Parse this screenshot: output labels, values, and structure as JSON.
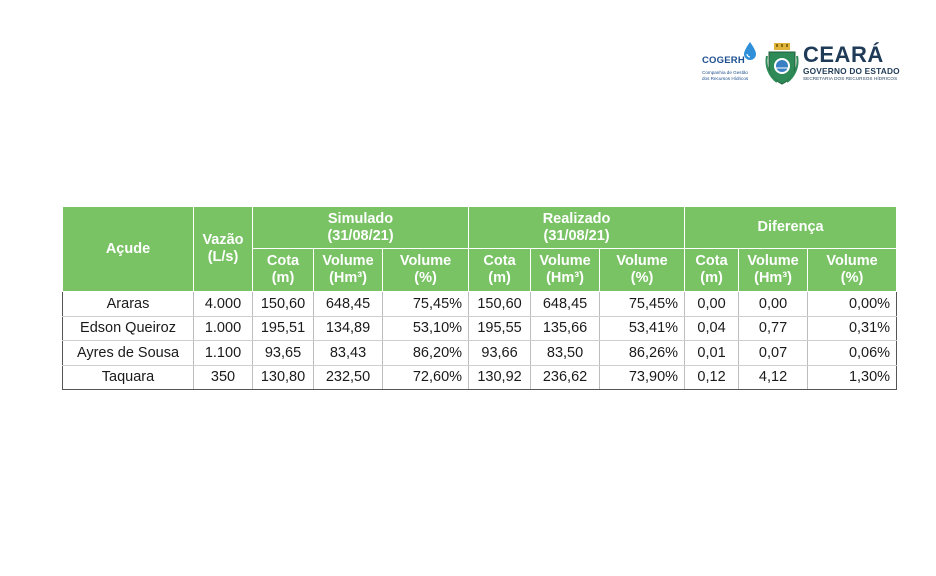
{
  "logos": {
    "cogerh_name": "COGERH",
    "cogerh_sub1": "Companhia de Gestão",
    "cogerh_sub2": "dos Recursos Hídricos",
    "state_name": "CEARÁ",
    "state_gov": "GOVERNO DO ESTADO",
    "state_secretariat": "SECRETARIA DOS RECURSOS HÍDRICOS"
  },
  "table": {
    "headers": {
      "acude": "Açude",
      "vazao_line1": "Vazão",
      "vazao_line2": "(L/s)",
      "simulado_line1": "Simulado",
      "simulado_line2": "(31/08/21)",
      "realizado_line1": "Realizado",
      "realizado_line2": "(31/08/21)",
      "diferenca": "Diferença",
      "cota_line1": "Cota",
      "cota_line2": "(m)",
      "vol_hm_line1": "Volume",
      "vol_hm_line2": "(Hm³)",
      "vol_pct_line1": "Volume",
      "vol_pct_line2": "(%)"
    },
    "rows": [
      {
        "acude": "Araras",
        "vazao": "4.000",
        "sim_cota": "150,60",
        "sim_vol": "648,45",
        "sim_pct": "75,45%",
        "real_cota": "150,60",
        "real_vol": "648,45",
        "real_pct": "75,45%",
        "dif_cota": "0,00",
        "dif_vol": "0,00",
        "dif_pct": "0,00%"
      },
      {
        "acude": "Edson Queiroz",
        "vazao": "1.000",
        "sim_cota": "195,51",
        "sim_vol": "134,89",
        "sim_pct": "53,10%",
        "real_cota": "195,55",
        "real_vol": "135,66",
        "real_pct": "53,41%",
        "dif_cota": "0,04",
        "dif_vol": "0,77",
        "dif_pct": "0,31%"
      },
      {
        "acude": "Ayres de Sousa",
        "vazao": "1.100",
        "sim_cota": "93,65",
        "sim_vol": "83,43",
        "sim_pct": "86,20%",
        "real_cota": "93,66",
        "real_vol": "83,50",
        "real_pct": "86,26%",
        "dif_cota": "0,01",
        "dif_vol": "0,07",
        "dif_pct": "0,06%"
      },
      {
        "acude": "Taquara",
        "vazao": "350",
        "sim_cota": "130,80",
        "sim_vol": "232,50",
        "sim_pct": "72,60%",
        "real_cota": "130,92",
        "real_vol": "236,62",
        "real_pct": "73,90%",
        "dif_cota": "0,12",
        "dif_vol": "4,12",
        "dif_pct": "1,30%"
      }
    ]
  },
  "colors": {
    "header_green": "#79c365",
    "logo_navy": "#1f3b57",
    "cogerh_blue": "#1d4f8f"
  }
}
